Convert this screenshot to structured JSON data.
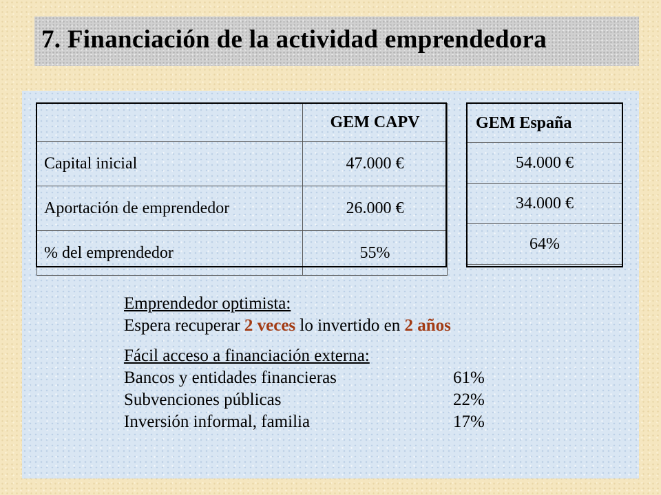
{
  "title": "7. Financiación de la actividad emprendedora",
  "table_capv": {
    "header": "GEM CAPV",
    "rows": [
      {
        "label": "Capital inicial",
        "value": "47.000 €"
      },
      {
        "label": "Aportación de emprendedor",
        "value": "26.000 €"
      },
      {
        "label": "% del emprendedor",
        "value": "55%"
      }
    ]
  },
  "table_espana": {
    "header": "GEM España",
    "values": [
      "54.000 €",
      "34.000 €",
      "64%"
    ]
  },
  "optimista": {
    "heading": "Emprendedor optimista:",
    "text_1": "Espera recuperar ",
    "highlight_1": "2 veces",
    "text_2": " lo invertido en ",
    "highlight_2": "2 años"
  },
  "financiacion": {
    "heading": "Fácil acceso a  financiación externa:",
    "items": [
      {
        "name": "Bancos y entidades financieras",
        "pct": "61%"
      },
      {
        "name": "Subvenciones públicas",
        "pct": "22%"
      },
      {
        "name": "Inversión informal, familia",
        "pct": "17%"
      }
    ]
  },
  "colors": {
    "highlight": "#a33b14",
    "panel": "#d9e6f3",
    "background": "#f5e6bf",
    "title_bar": "#d0d0d0"
  }
}
